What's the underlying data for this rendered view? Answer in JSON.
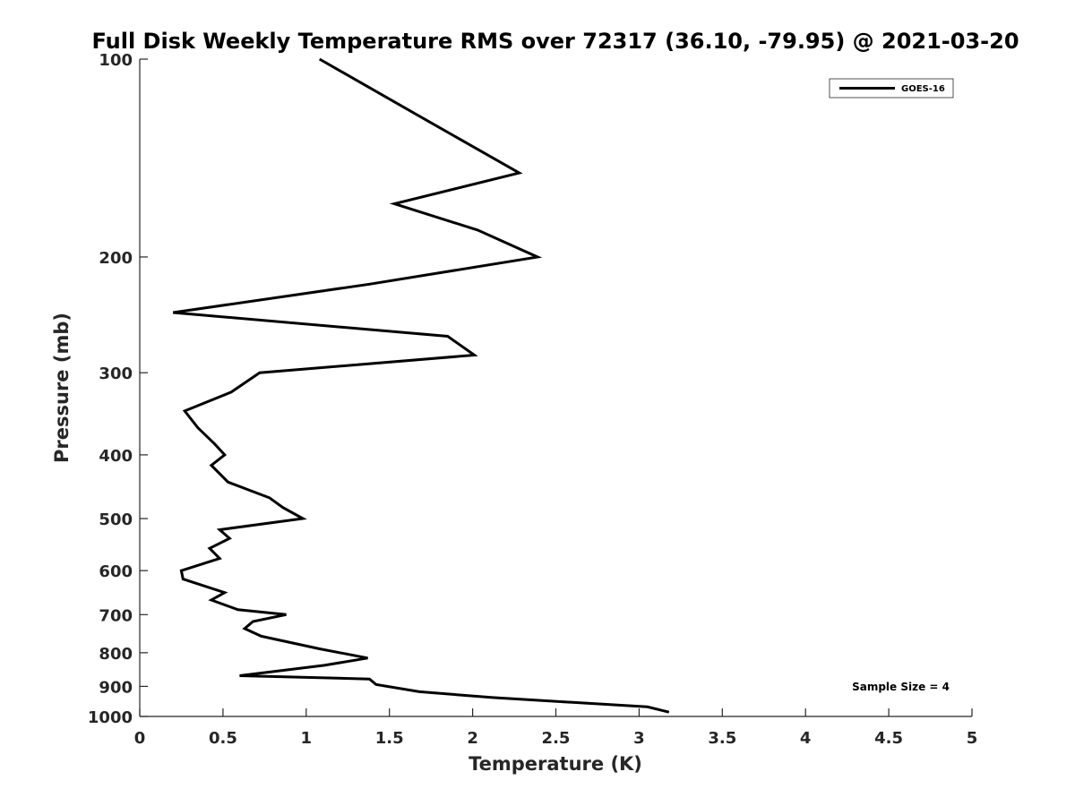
{
  "chart_data": {
    "type": "line",
    "title": "Full Disk Weekly Temperature RMS over 72317 (36.10, -79.95) @ 2021-03-20",
    "xlabel": "Temperature (K)",
    "ylabel": "Pressure (mb)",
    "xlim": [
      0,
      5
    ],
    "xticks": [
      0,
      0.5,
      1,
      1.5,
      2,
      2.5,
      3,
      3.5,
      4,
      4.5,
      5
    ],
    "xtick_labels": [
      "0",
      "0.5",
      "1",
      "1.5",
      "2",
      "2.5",
      "3",
      "3.5",
      "4",
      "4.5",
      "5"
    ],
    "ylim": [
      100,
      1000
    ],
    "yscale": "log",
    "yreversed": true,
    "yticks": [
      100,
      200,
      300,
      400,
      500,
      600,
      700,
      800,
      900,
      1000
    ],
    "ytick_labels": [
      "100",
      "200",
      "300",
      "400",
      "500",
      "600",
      "700",
      "800",
      "900",
      "1000"
    ],
    "grid": false,
    "legend_position": "top-right",
    "annotation": "Sample Size = 4",
    "series": [
      {
        "name": "GOES-16",
        "color": "#000000",
        "points": [
          [
            1.08,
            100
          ],
          [
            1.75,
            125
          ],
          [
            2.28,
            149
          ],
          [
            1.53,
            166
          ],
          [
            2.03,
            182
          ],
          [
            2.39,
            200
          ],
          [
            1.38,
            220
          ],
          [
            0.2,
            243
          ],
          [
            1.85,
            264
          ],
          [
            2.01,
            282
          ],
          [
            0.72,
            300
          ],
          [
            0.55,
            321
          ],
          [
            0.27,
            343
          ],
          [
            0.35,
            364
          ],
          [
            0.45,
            385
          ],
          [
            0.51,
            400
          ],
          [
            0.43,
            415
          ],
          [
            0.53,
            440
          ],
          [
            0.78,
            465
          ],
          [
            0.86,
            481
          ],
          [
            0.98,
            500
          ],
          [
            0.48,
            520
          ],
          [
            0.54,
            536
          ],
          [
            0.42,
            555
          ],
          [
            0.48,
            575
          ],
          [
            0.25,
            600
          ],
          [
            0.26,
            618
          ],
          [
            0.51,
            648
          ],
          [
            0.43,
            665
          ],
          [
            0.59,
            688
          ],
          [
            0.88,
            700
          ],
          [
            0.68,
            717
          ],
          [
            0.63,
            735
          ],
          [
            0.73,
            755
          ],
          [
            1.08,
            789
          ],
          [
            1.37,
            815
          ],
          [
            1.11,
            836
          ],
          [
            0.6,
            867
          ],
          [
            1.38,
            877
          ],
          [
            1.42,
            894
          ],
          [
            1.68,
            917
          ],
          [
            2.12,
            936
          ],
          [
            3.05,
            967
          ],
          [
            3.18,
            985
          ]
        ]
      }
    ]
  }
}
